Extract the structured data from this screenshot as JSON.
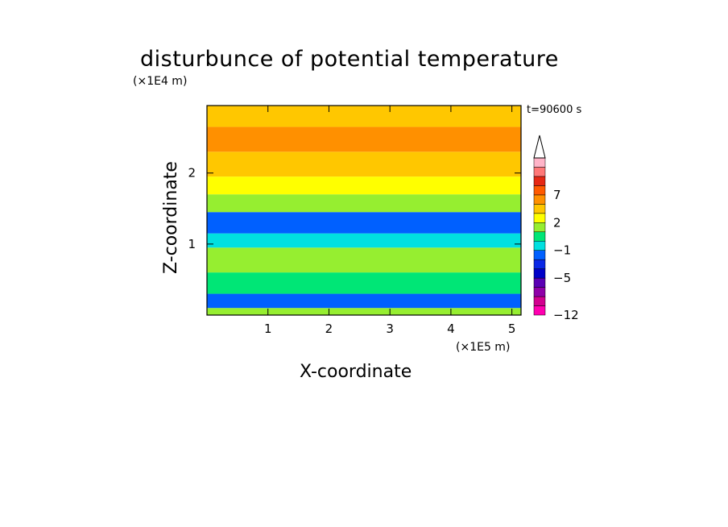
{
  "chart_data": {
    "type": "heatmap",
    "title": "disturbunce of potential temperature",
    "xlabel": "X-coordinate",
    "ylabel": "Z-coordinate",
    "x_unit": "(×1E5 m)",
    "z_unit": "(×1E4 m)",
    "time_label": "t=90600 s",
    "xlim": [
      0,
      5.15
    ],
    "ylim": [
      0,
      2.95
    ],
    "x_ticks": [
      1,
      2,
      3,
      4,
      5
    ],
    "y_ticks": [
      1,
      2
    ],
    "colorbar": {
      "levels": [
        -12,
        -11,
        -9,
        -7,
        -5,
        -4,
        -3,
        -1,
        0,
        1,
        2,
        3,
        5,
        7,
        8,
        9
      ],
      "labels": [
        "-12",
        "-5",
        "-1",
        "2",
        "7"
      ],
      "colors": [
        "#ff00b0",
        "#d2008f",
        "#8f00a8",
        "#5a00b4",
        "#0000c8",
        "#0a28e6",
        "#0060ff",
        "#00e0e0",
        "#00e676",
        "#96ee30",
        "#ffff00",
        "#ffc700",
        "#ff9000",
        "#ff5a00",
        "#e62814",
        "#ff7878",
        "#ffb4c8"
      ],
      "extend": "max"
    },
    "bands": [
      {
        "z": [
          0.0,
          0.1
        ],
        "value": 0
      },
      {
        "z": [
          0.1,
          0.3
        ],
        "value": -4
      },
      {
        "z": [
          0.3,
          0.6
        ],
        "value": -1
      },
      {
        "z": [
          0.6,
          0.95
        ],
        "value": 0
      },
      {
        "z": [
          0.95,
          1.15
        ],
        "value": -3
      },
      {
        "z": [
          1.15,
          1.45
        ],
        "value": -4
      },
      {
        "z": [
          1.45,
          1.7
        ],
        "value": 0
      },
      {
        "z": [
          1.7,
          1.95
        ],
        "value": 1
      },
      {
        "z": [
          1.95,
          2.3
        ],
        "value": 2
      },
      {
        "z": [
          2.3,
          2.65
        ],
        "value": 3
      },
      {
        "z": [
          2.65,
          2.95
        ],
        "value": 2
      }
    ]
  }
}
